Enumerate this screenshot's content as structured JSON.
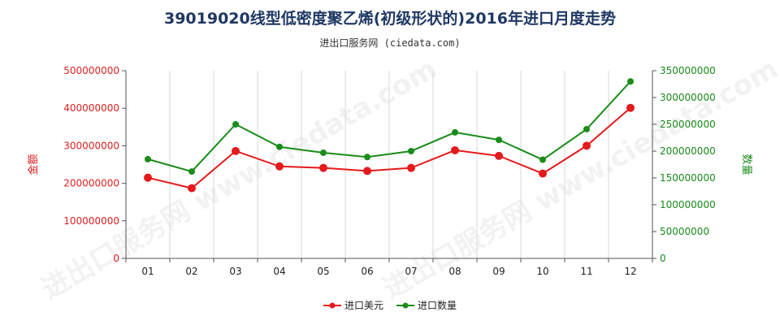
{
  "title": "39019020线型低密度聚乙烯(初级形状的)2016年进口月度走势",
  "subtitle": "进出口服务网 (ciedata.com)",
  "watermark": "进出口服务网 www.ciedata.com",
  "colors": {
    "left_series": "#e41a1c",
    "right_series": "#1a8c1a",
    "left_axis": "#e02020",
    "right_axis": "#1a8a1a"
  },
  "chart_data": {
    "type": "line",
    "categories": [
      "01",
      "02",
      "03",
      "04",
      "05",
      "06",
      "07",
      "08",
      "09",
      "10",
      "11",
      "12"
    ],
    "series": [
      {
        "name": "进口美元",
        "axis": "left",
        "values": [
          215000000,
          187000000,
          286000000,
          245000000,
          241000000,
          233000000,
          241000000,
          288000000,
          273000000,
          226000000,
          300000000,
          401000000
        ]
      },
      {
        "name": "进口数量",
        "axis": "right",
        "values": [
          185000000,
          162000000,
          250000000,
          208000000,
          197000000,
          189000000,
          200000000,
          235000000,
          221000000,
          184000000,
          241000000,
          330000000
        ]
      }
    ],
    "ylabel": "金额",
    "y2label": "数量",
    "ylim": [
      0,
      500000000
    ],
    "y2lim": [
      0,
      350000000
    ],
    "yticks": [
      "0",
      "100000000",
      "200000000",
      "300000000",
      "400000000",
      "500000000"
    ],
    "y2ticks": [
      "0",
      "50000000",
      "100000000",
      "150000000",
      "200000000",
      "250000000",
      "300000000",
      "350000000"
    ],
    "grid": "vertical",
    "legend": "bottom-center"
  }
}
